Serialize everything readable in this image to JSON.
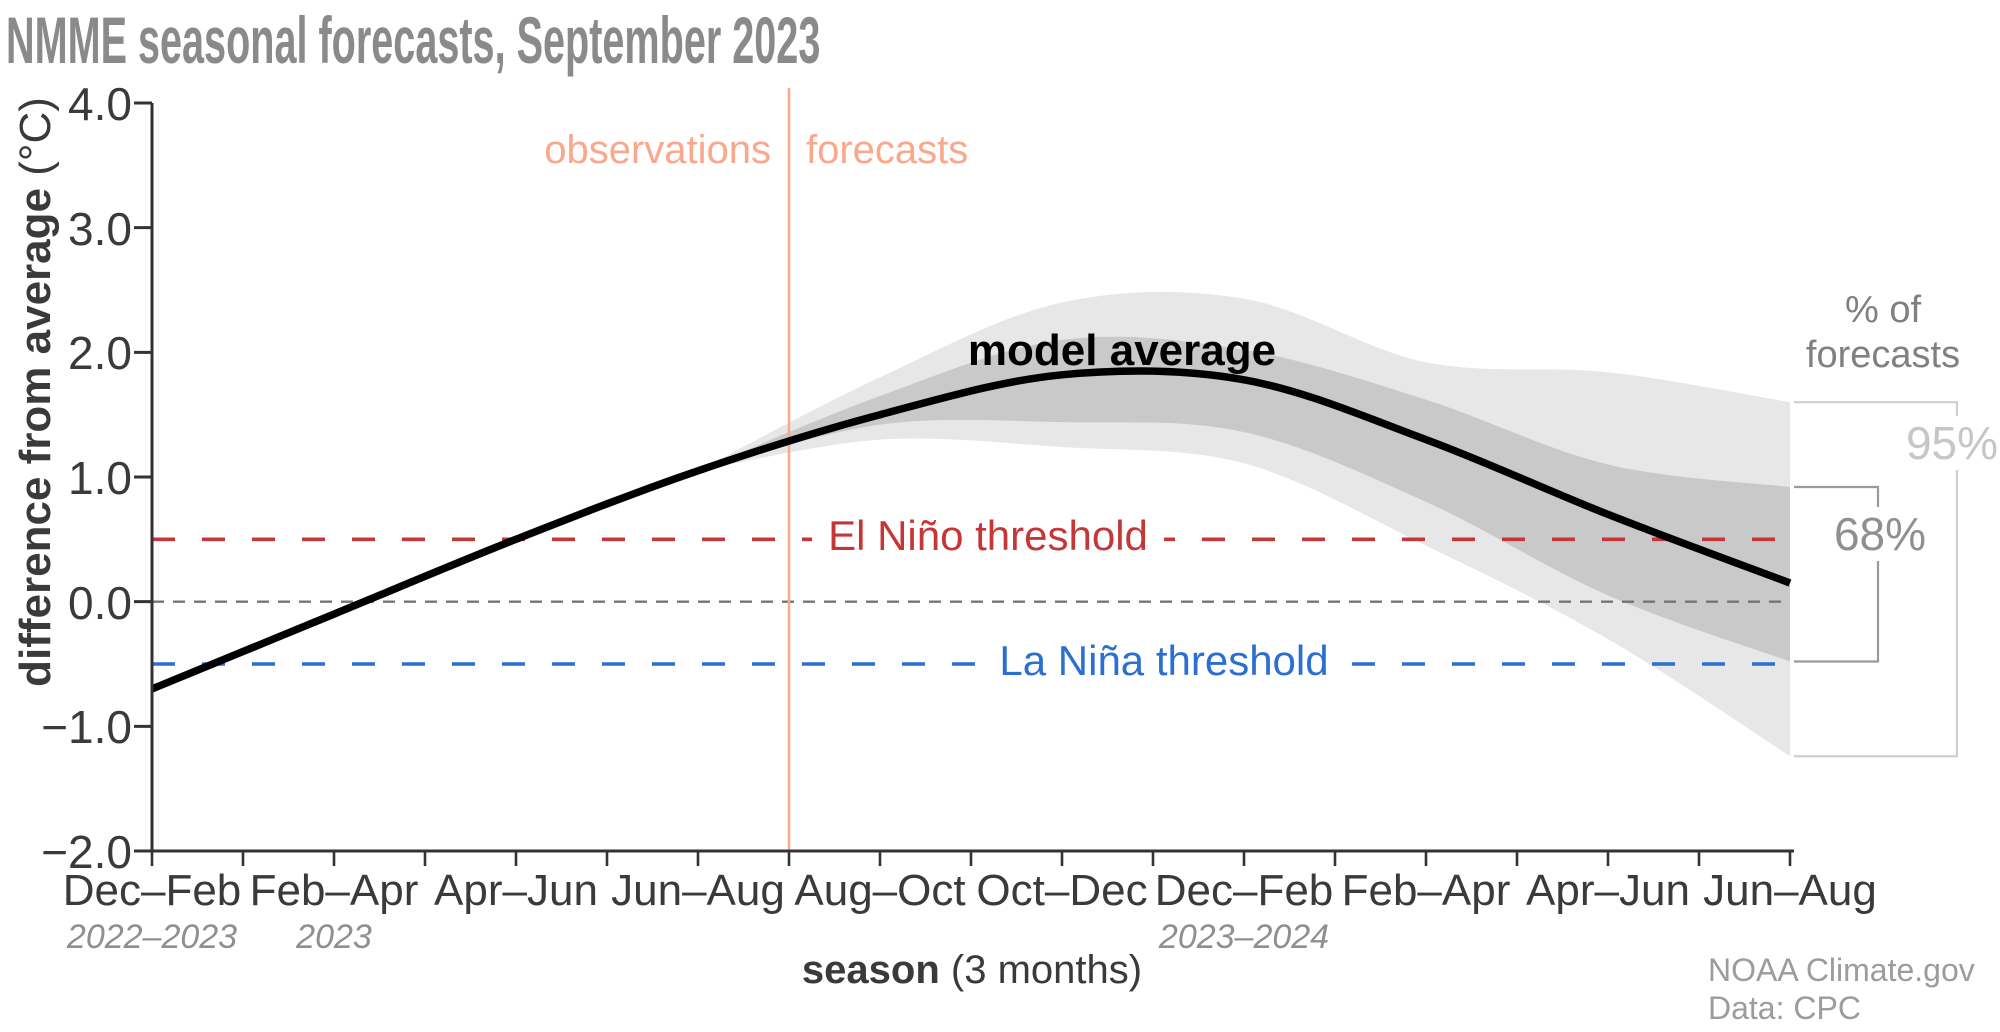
{
  "title": "NMME seasonal forecasts, September 2023",
  "axes": {
    "y_title_bold": "difference from average",
    "y_title_unit": " (°C)",
    "x_title_bold": "season",
    "x_title_rest": " (3 months)"
  },
  "annotations": {
    "observations": "observations",
    "forecasts": "forecasts",
    "model_average": "model average",
    "el_nino_threshold": "El Niño threshold",
    "la_nina_threshold": "La Niña threshold",
    "pct_of_line1": "% of",
    "pct_of_line2": "forecasts",
    "pct_95": "95%",
    "pct_68": "68%"
  },
  "footer": {
    "line1": "NOAA Climate.gov",
    "line2": "Data: CPC"
  },
  "colors": {
    "title_gray": "#8a8a8a",
    "label_dark": "#3a3a3a",
    "salmon": "#f9a88b",
    "el_nino_red": "#c53636",
    "la_nina_blue": "#2b6fd0",
    "zero_line_gray": "#757575",
    "band_68": "#c9c9c9",
    "band_95": "#e7e7e7",
    "model_line": "#000000",
    "axis": "#333333",
    "bracket_95": "#cfcfcf",
    "bracket_68": "#9a9a9a",
    "muted": "#8f8f8f",
    "footer_gray": "#9c9c9c"
  },
  "chart_data": {
    "type": "line",
    "title": "NMME seasonal forecasts, September 2023",
    "xlabel": "season (3 months)",
    "ylabel": "difference from average (°C)",
    "ylim": [
      -2.0,
      4.0
    ],
    "grid": false,
    "y_ticks": [
      "4.0",
      "3.0",
      "2.0",
      "1.0",
      "0.0",
      "−1.0",
      "−2.0"
    ],
    "y_tick_values": [
      4,
      3,
      2,
      1,
      0,
      -1,
      -2
    ],
    "categories": [
      "Dec–Feb",
      "Feb–Apr",
      "Apr–Jun",
      "Jun–Aug",
      "Aug–Oct",
      "Oct–Dec",
      "Dec–Feb",
      "Feb–Apr",
      "Apr–Jun",
      "Jun–Aug"
    ],
    "year_sublabels": [
      {
        "index": 0,
        "text": "2022–2023"
      },
      {
        "index": 1,
        "text": "2023"
      },
      {
        "index": 6,
        "text": "2023–2024"
      }
    ],
    "el_nino_threshold": 0.5,
    "la_nina_threshold": -0.5,
    "zero_line": 0.0,
    "forecast_boundary_between": [
      3,
      4
    ],
    "series": [
      {
        "name": "model average",
        "values": [
          -0.7,
          -0.1,
          0.5,
          1.05,
          1.5,
          1.82,
          1.78,
          1.3,
          0.7,
          0.15
        ]
      },
      {
        "name": "68% of forecasts",
        "type": "band",
        "x_start_index": 3,
        "top": [
          1.05,
          1.65,
          2.1,
          2.02,
          1.62,
          1.1,
          0.92
        ],
        "bottom": [
          1.05,
          1.42,
          1.44,
          1.36,
          0.8,
          0.05,
          -0.48
        ]
      },
      {
        "name": "95% of forecasts",
        "type": "band",
        "x_start_index": 3,
        "top": [
          1.05,
          1.8,
          2.4,
          2.43,
          1.92,
          1.84,
          1.6
        ],
        "bottom": [
          1.05,
          1.3,
          1.24,
          1.11,
          0.45,
          -0.3,
          -1.24
        ]
      }
    ],
    "legend": [
      "model average",
      "68% of forecasts",
      "95% of forecasts"
    ],
    "legend_position": "right-annotations"
  }
}
